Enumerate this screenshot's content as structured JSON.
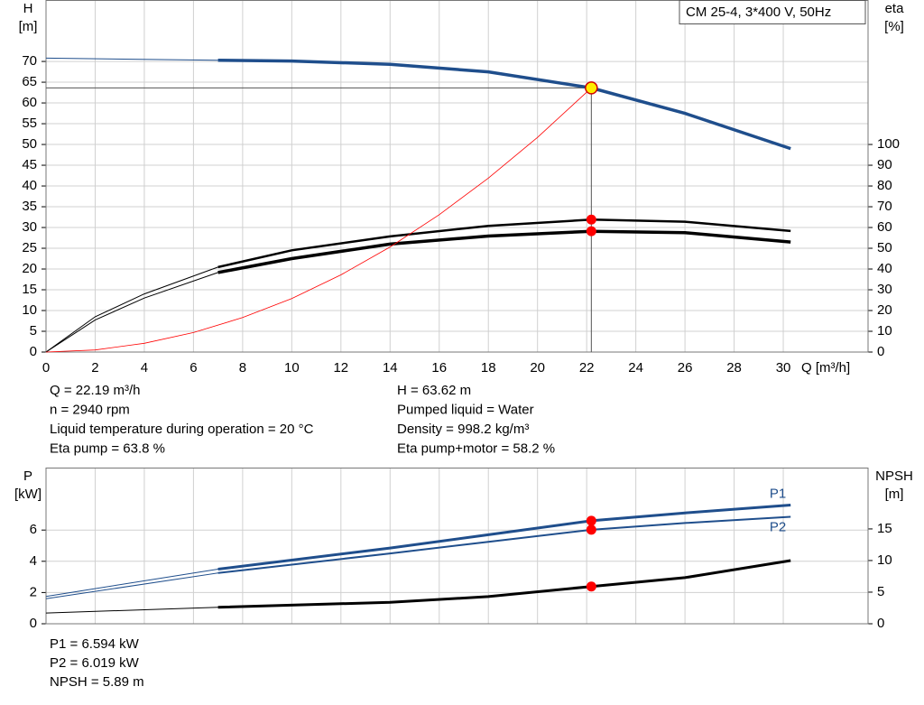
{
  "chart_data": [
    {
      "type": "line",
      "title": "CM 25-4, 3*400 V, 50Hz",
      "xlabel": "Q [m³/h]",
      "ylabel": [
        "H",
        "[m]"
      ],
      "y2label": [
        "eta",
        "[%]"
      ],
      "xlim": [
        0,
        33.45
      ],
      "xticks": [
        0,
        2,
        4,
        6,
        8,
        10,
        12,
        14,
        16,
        18,
        20,
        22,
        24,
        26,
        28,
        30
      ],
      "ylim": [
        0,
        84.8
      ],
      "yticks": [
        0,
        5,
        10,
        15,
        20,
        25,
        30,
        35,
        40,
        45,
        50,
        55,
        60,
        65,
        70
      ],
      "y2lim": [
        0,
        169.6
      ],
      "y2ticks": [
        0,
        10,
        20,
        30,
        40,
        50,
        60,
        70,
        80,
        90,
        100
      ],
      "grid": true,
      "series": [
        {
          "color": "#1f4e8c",
          "width": 1,
          "axis": "y",
          "x": [
            0,
            7
          ],
          "values": [
            70.8,
            70.3
          ]
        },
        {
          "color": "#1f4e8c",
          "width": 3.5,
          "axis": "y",
          "x": [
            7,
            10,
            14,
            18,
            22.19,
            26,
            30.3
          ],
          "values": [
            70.3,
            70.1,
            69.3,
            67.5,
            63.62,
            57.5,
            49
          ]
        },
        {
          "color": "#000000",
          "width": 1,
          "axis": "y2",
          "x": [
            0,
            2,
            4,
            7
          ],
          "values": [
            0,
            17,
            28,
            40.9
          ]
        },
        {
          "color": "#000000",
          "width": 2.5,
          "axis": "y2",
          "x": [
            7,
            10,
            14,
            18,
            22.19,
            26,
            30.3
          ],
          "values": [
            40.9,
            49,
            55.7,
            60.8,
            63.8,
            62.8,
            58.3
          ]
        },
        {
          "color": "#000000",
          "width": 1,
          "axis": "y2",
          "x": [
            0,
            2,
            4,
            7
          ],
          "values": [
            0,
            15.5,
            26,
            38.3
          ]
        },
        {
          "color": "#000000",
          "width": 3.5,
          "axis": "y2",
          "x": [
            7,
            10,
            14,
            18,
            22.19,
            26,
            30.3
          ],
          "values": [
            38.3,
            45,
            52,
            55.9,
            58.2,
            57.5,
            53
          ]
        },
        {
          "color": "#ff0000",
          "width": 0.8,
          "axis": "y",
          "x": [
            0,
            2,
            4,
            6,
            8,
            10,
            12,
            14,
            16,
            18,
            20,
            22.19
          ],
          "values": [
            0,
            0.5,
            2.1,
            4.7,
            8.3,
            12.9,
            18.6,
            25.3,
            33.1,
            41.9,
            51.7,
            63.62
          ]
        }
      ],
      "markers": [
        {
          "x": 22.19,
          "value": 63.62,
          "axis": "y",
          "color": "#ffee00"
        },
        {
          "x": 22.19,
          "value": 63.8,
          "axis": "y2",
          "color": "#ff0000"
        },
        {
          "x": 22.19,
          "value": 58.2,
          "axis": "y2",
          "color": "#ff0000"
        }
      ]
    },
    {
      "type": "line",
      "ylabel": [
        "P",
        "[kW]"
      ],
      "y2label": [
        "NPSH",
        "[m]"
      ],
      "xlim": [
        0,
        33.45
      ],
      "xticks": [
        0,
        2,
        4,
        6,
        8,
        10,
        12,
        14,
        16,
        18,
        20,
        22,
        24,
        26,
        28,
        30
      ],
      "ylim": [
        0,
        10
      ],
      "yticks": [
        0,
        2,
        4,
        6
      ],
      "y2lim": [
        0,
        24.7
      ],
      "y2ticks": [
        0,
        5,
        10,
        15
      ],
      "grid": true,
      "series": [
        {
          "color": "#1f4e8c",
          "width": 1,
          "axis": "y",
          "x": [
            0,
            7
          ],
          "values": [
            1.75,
            3.5
          ]
        },
        {
          "name": "P1",
          "color": "#1f4e8c",
          "width": 3,
          "axis": "y",
          "x": [
            7,
            14,
            18,
            22.19,
            26,
            30.3
          ],
          "values": [
            3.5,
            4.85,
            5.7,
            6.594,
            7.1,
            7.6
          ]
        },
        {
          "color": "#1f4e8c",
          "width": 1,
          "axis": "y",
          "x": [
            0,
            7
          ],
          "values": [
            1.6,
            3.25
          ]
        },
        {
          "name": "P2",
          "color": "#1f4e8c",
          "width": 2,
          "axis": "y",
          "x": [
            7,
            14,
            18,
            22.19,
            26,
            30.3
          ],
          "values": [
            3.25,
            4.5,
            5.25,
            6.019,
            6.45,
            6.85
          ]
        },
        {
          "color": "#000000",
          "width": 1,
          "axis": "y2",
          "x": [
            0,
            7
          ],
          "values": [
            1.7,
            2.6
          ]
        },
        {
          "color": "#000000",
          "width": 3,
          "axis": "y2",
          "x": [
            7,
            14,
            18,
            22.19,
            26,
            30.3
          ],
          "values": [
            2.6,
            3.4,
            4.3,
            5.89,
            7.3,
            10
          ]
        }
      ],
      "markers": [
        {
          "x": 22.19,
          "value": 6.594,
          "axis": "y",
          "color": "#ff0000"
        },
        {
          "x": 22.19,
          "value": 6.019,
          "axis": "y",
          "color": "#ff0000"
        },
        {
          "x": 22.19,
          "value": 5.89,
          "axis": "y2",
          "color": "#ff0000"
        }
      ]
    }
  ],
  "info_top_left": [
    "Q = 22.19 m³/h",
    "n = 2940 rpm",
    "Liquid temperature during operation = 20 °C",
    "Eta pump = 63.8 %"
  ],
  "info_top_right": [
    "H = 63.62 m",
    "Pumped liquid = Water",
    "Density = 998.2 kg/m³",
    "Eta pump+motor = 58.2 %"
  ],
  "info_bottom": [
    "P1 = 6.594 kW",
    "P2 = 6.019 kW",
    "NPSH = 5.89 m"
  ]
}
